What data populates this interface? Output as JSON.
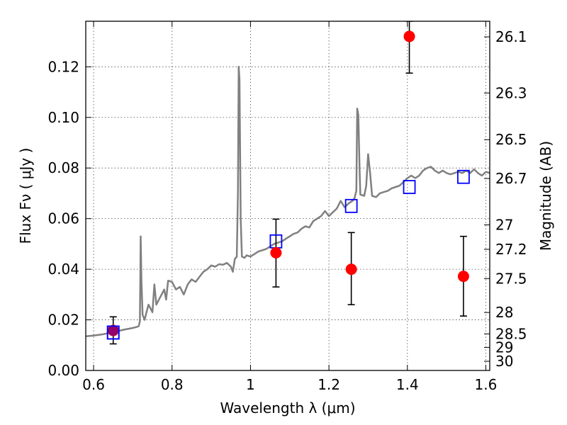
{
  "chart_data": {
    "type": "line",
    "title": "",
    "xlabel": "Wavelength  λ (μm)",
    "ylabel": "Flux  Fν  ( μJy )",
    "y2label": "Magnitude (AB)",
    "xlim": [
      0.58,
      1.61
    ],
    "ylim": [
      0.0,
      0.138
    ],
    "grid": true,
    "x_ticks": [
      {
        "value": 0.6,
        "label": "0.6"
      },
      {
        "value": 0.8,
        "label": "0.8"
      },
      {
        "value": 1.0,
        "label": "1"
      },
      {
        "value": 1.2,
        "label": "1.2"
      },
      {
        "value": 1.4,
        "label": "1.4"
      },
      {
        "value": 1.6,
        "label": "1.6"
      }
    ],
    "y_ticks": [
      {
        "value": 0.0,
        "label": "0.00"
      },
      {
        "value": 0.02,
        "label": "0.02"
      },
      {
        "value": 0.04,
        "label": "0.04"
      },
      {
        "value": 0.06,
        "label": "0.06"
      },
      {
        "value": 0.08,
        "label": "0.08"
      },
      {
        "value": 0.1,
        "label": "0.10"
      },
      {
        "value": 0.12,
        "label": "0.12"
      }
    ],
    "y2_ticks": [
      {
        "mag": 26.1,
        "label": "26.1"
      },
      {
        "mag": 26.3,
        "label": "26.3"
      },
      {
        "mag": 26.5,
        "label": "26.5"
      },
      {
        "mag": 26.7,
        "label": "26.7"
      },
      {
        "mag": 27.0,
        "label": "27"
      },
      {
        "mag": 27.2,
        "label": "27.2"
      },
      {
        "mag": 27.5,
        "label": "27.5"
      },
      {
        "mag": 28.0,
        "label": "28"
      },
      {
        "mag": 28.5,
        "label": "28.5"
      },
      {
        "mag": 29.0,
        "label": "29"
      },
      {
        "mag": 30.0,
        "label": "30"
      }
    ],
    "colors": {
      "model": "#808080",
      "observed": "#ff0000",
      "synthetic": "#0000ff",
      "errorbar": "#000000"
    },
    "series": [
      {
        "kind": "model_spectrum",
        "points": [
          [
            0.58,
            0.0135
          ],
          [
            0.6,
            0.0138
          ],
          [
            0.62,
            0.0142
          ],
          [
            0.64,
            0.0148
          ],
          [
            0.66,
            0.0155
          ],
          [
            0.68,
            0.0162
          ],
          [
            0.7,
            0.0168
          ],
          [
            0.71,
            0.0172
          ],
          [
            0.715,
            0.0175
          ],
          [
            0.718,
            0.0195
          ],
          [
            0.72,
            0.053
          ],
          [
            0.722,
            0.035
          ],
          [
            0.725,
            0.022
          ],
          [
            0.73,
            0.02
          ],
          [
            0.74,
            0.026
          ],
          [
            0.75,
            0.023
          ],
          [
            0.755,
            0.034
          ],
          [
            0.76,
            0.026
          ],
          [
            0.77,
            0.029
          ],
          [
            0.78,
            0.032
          ],
          [
            0.785,
            0.028
          ],
          [
            0.79,
            0.0355
          ],
          [
            0.8,
            0.035
          ],
          [
            0.81,
            0.032
          ],
          [
            0.82,
            0.033
          ],
          [
            0.83,
            0.03
          ],
          [
            0.84,
            0.034
          ],
          [
            0.85,
            0.036
          ],
          [
            0.86,
            0.035
          ],
          [
            0.87,
            0.037
          ],
          [
            0.88,
            0.039
          ],
          [
            0.89,
            0.04
          ],
          [
            0.9,
            0.0415
          ],
          [
            0.91,
            0.041
          ],
          [
            0.92,
            0.042
          ],
          [
            0.93,
            0.0418
          ],
          [
            0.94,
            0.0425
          ],
          [
            0.95,
            0.041
          ],
          [
            0.955,
            0.039
          ],
          [
            0.96,
            0.044
          ],
          [
            0.965,
            0.045
          ],
          [
            0.968,
            0.07
          ],
          [
            0.97,
            0.12
          ],
          [
            0.972,
            0.115
          ],
          [
            0.975,
            0.06
          ],
          [
            0.978,
            0.045
          ],
          [
            0.985,
            0.0445
          ],
          [
            0.99,
            0.0455
          ],
          [
            1.0,
            0.045
          ],
          [
            1.01,
            0.046
          ],
          [
            1.02,
            0.047
          ],
          [
            1.03,
            0.0475
          ],
          [
            1.04,
            0.048
          ],
          [
            1.05,
            0.049
          ],
          [
            1.06,
            0.05
          ],
          [
            1.07,
            0.0505
          ],
          [
            1.08,
            0.051
          ],
          [
            1.09,
            0.052
          ],
          [
            1.1,
            0.053
          ],
          [
            1.11,
            0.054
          ],
          [
            1.12,
            0.0545
          ],
          [
            1.13,
            0.056
          ],
          [
            1.14,
            0.057
          ],
          [
            1.15,
            0.0565
          ],
          [
            1.16,
            0.059
          ],
          [
            1.17,
            0.06
          ],
          [
            1.18,
            0.061
          ],
          [
            1.19,
            0.063
          ],
          [
            1.2,
            0.061
          ],
          [
            1.21,
            0.0625
          ],
          [
            1.22,
            0.064
          ],
          [
            1.23,
            0.067
          ],
          [
            1.24,
            0.0645
          ],
          [
            1.25,
            0.066
          ],
          [
            1.26,
            0.067
          ],
          [
            1.265,
            0.068
          ],
          [
            1.27,
            0.071
          ],
          [
            1.272,
            0.1035
          ],
          [
            1.275,
            0.101
          ],
          [
            1.278,
            0.08
          ],
          [
            1.28,
            0.0695
          ],
          [
            1.29,
            0.069
          ],
          [
            1.295,
            0.073
          ],
          [
            1.3,
            0.0855
          ],
          [
            1.305,
            0.078
          ],
          [
            1.31,
            0.069
          ],
          [
            1.32,
            0.0685
          ],
          [
            1.33,
            0.07
          ],
          [
            1.34,
            0.0705
          ],
          [
            1.35,
            0.071
          ],
          [
            1.36,
            0.072
          ],
          [
            1.37,
            0.0725
          ],
          [
            1.38,
            0.073
          ],
          [
            1.39,
            0.0745
          ],
          [
            1.4,
            0.076
          ],
          [
            1.41,
            0.077
          ],
          [
            1.42,
            0.076
          ],
          [
            1.43,
            0.077
          ],
          [
            1.44,
            0.079
          ],
          [
            1.45,
            0.08
          ],
          [
            1.46,
            0.0805
          ],
          [
            1.47,
            0.079
          ],
          [
            1.48,
            0.078
          ],
          [
            1.49,
            0.079
          ],
          [
            1.5,
            0.078
          ],
          [
            1.51,
            0.0775
          ],
          [
            1.52,
            0.078
          ],
          [
            1.53,
            0.0785
          ],
          [
            1.54,
            0.078
          ],
          [
            1.55,
            0.079
          ],
          [
            1.56,
            0.078
          ],
          [
            1.57,
            0.0795
          ],
          [
            1.58,
            0.078
          ],
          [
            1.59,
            0.077
          ],
          [
            1.6,
            0.0785
          ],
          [
            1.61,
            0.078
          ]
        ]
      },
      {
        "kind": "synthetic_photometry",
        "marker": "open-square",
        "points": [
          [
            0.65,
            0.015
          ],
          [
            1.065,
            0.051
          ],
          [
            1.257,
            0.065
          ],
          [
            1.405,
            0.0725
          ],
          [
            1.543,
            0.0765
          ]
        ]
      },
      {
        "kind": "observed_photometry",
        "marker": "filled-circle",
        "points": [
          {
            "x": 0.65,
            "y": 0.0158,
            "ylo": 0.0105,
            "yhi": 0.0212
          },
          {
            "x": 1.065,
            "y": 0.0465,
            "ylo": 0.033,
            "yhi": 0.0598
          },
          {
            "x": 1.257,
            "y": 0.04,
            "ylo": 0.026,
            "yhi": 0.0545
          },
          {
            "x": 1.405,
            "y": 0.132,
            "ylo": 0.1175,
            "yhi": 0.138
          },
          {
            "x": 1.543,
            "y": 0.0372,
            "ylo": 0.0215,
            "yhi": 0.053
          }
        ]
      }
    ]
  }
}
